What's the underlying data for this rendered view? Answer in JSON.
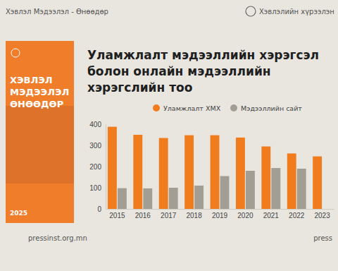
{
  "page": {
    "brand": "Хэвлэл Мэдээлэл - Өнөөдөр",
    "publisher": "Хэвлэлийн хүрээлэн",
    "cover_title": [
      "ХЭВЛЭЛ",
      "МЭДЭЭЛЭЛ",
      "ӨНӨӨДӨР"
    ],
    "cover_year": "2025",
    "website": "pressinst.org.mn",
    "handle": "press"
  },
  "chart_data": {
    "type": "bar",
    "title": [
      "Уламжлалт мэдээллийн хэрэгсэл",
      "болон онлайн мэдээллийн",
      "хэрэгслийн тоо"
    ],
    "categories": [
      "2015",
      "2016",
      "2017",
      "2018",
      "2019",
      "2020",
      "2021",
      "2022",
      "2023"
    ],
    "series": [
      {
        "name": "Уламжлалт ХМХ",
        "color": "#f07c1e",
        "values": [
          388,
          350,
          335,
          348,
          348,
          337,
          295,
          262,
          248
        ]
      },
      {
        "name": "Мэдээллийн сайт",
        "color": "#a39e94",
        "values": [
          98,
          97,
          100,
          110,
          155,
          180,
          193,
          190,
          null
        ]
      }
    ],
    "ylim": [
      0,
      400
    ],
    "yticks": [
      0,
      100,
      200,
      300,
      400
    ],
    "grid": false,
    "legend": "top"
  }
}
